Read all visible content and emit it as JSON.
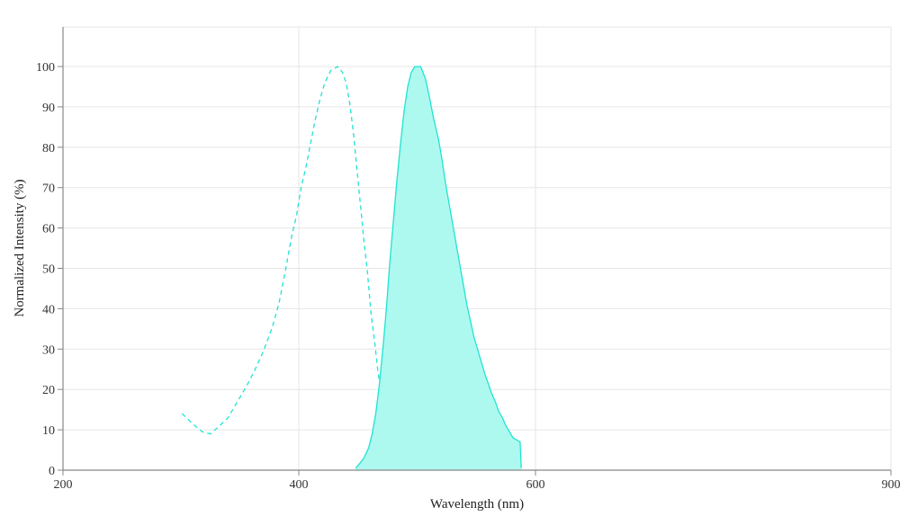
{
  "chart_data": {
    "type": "area",
    "title": "",
    "xlabel": "Wavelength (nm)",
    "ylabel": "Normalized Intensity (%)",
    "xlim": [
      200,
      900
    ],
    "ylim": [
      0,
      100
    ],
    "x_ticks": [
      200,
      400,
      600,
      900
    ],
    "y_ticks": [
      0,
      10,
      20,
      30,
      40,
      50,
      60,
      70,
      80,
      90,
      100
    ],
    "grid": true,
    "legend": "none",
    "series": [
      {
        "style": "dashed-line",
        "color": "#20e3d2",
        "points": [
          [
            301,
            14
          ],
          [
            310,
            11.5
          ],
          [
            318,
            9.5
          ],
          [
            325,
            9
          ],
          [
            333,
            11
          ],
          [
            340,
            13
          ],
          [
            348,
            17
          ],
          [
            356,
            21
          ],
          [
            363,
            25
          ],
          [
            370,
            29.5
          ],
          [
            377,
            35
          ],
          [
            383,
            41
          ],
          [
            389,
            50
          ],
          [
            394,
            58
          ],
          [
            398,
            63
          ],
          [
            402,
            70
          ],
          [
            406,
            75
          ],
          [
            410,
            81
          ],
          [
            414,
            87
          ],
          [
            418,
            92
          ],
          [
            422,
            96
          ],
          [
            427,
            99
          ],
          [
            433,
            100
          ],
          [
            437,
            98.5
          ],
          [
            440,
            96
          ],
          [
            443,
            91
          ],
          [
            446,
            84
          ],
          [
            449,
            75
          ],
          [
            452,
            66
          ],
          [
            455,
            57
          ],
          [
            458,
            49
          ],
          [
            461,
            39
          ],
          [
            464,
            32
          ],
          [
            467,
            24
          ],
          [
            470,
            19
          ],
          [
            473,
            15
          ],
          [
            476,
            11
          ],
          [
            479,
            8.5
          ],
          [
            480.5,
            0.5
          ]
        ]
      },
      {
        "style": "filled-line",
        "color": "#20e3d2",
        "fill": "#aef9ef",
        "points": [
          [
            448,
            0.5
          ],
          [
            451,
            1.5
          ],
          [
            455,
            3
          ],
          [
            459,
            5.5
          ],
          [
            462,
            9
          ],
          [
            465,
            14
          ],
          [
            468,
            21
          ],
          [
            471,
            30
          ],
          [
            474,
            40
          ],
          [
            477,
            52
          ],
          [
            480,
            62
          ],
          [
            483,
            72
          ],
          [
            486,
            81
          ],
          [
            489,
            89
          ],
          [
            492,
            95
          ],
          [
            495,
            98.5
          ],
          [
            498,
            100
          ],
          [
            503,
            100
          ],
          [
            507,
            97
          ],
          [
            510,
            93
          ],
          [
            514,
            87
          ],
          [
            518,
            82
          ],
          [
            521,
            77
          ],
          [
            524,
            71
          ],
          [
            527,
            66
          ],
          [
            530,
            61
          ],
          [
            533,
            56
          ],
          [
            536,
            51
          ],
          [
            539,
            46
          ],
          [
            542,
            41
          ],
          [
            545,
            37
          ],
          [
            548,
            33
          ],
          [
            551,
            30
          ],
          [
            554,
            27
          ],
          [
            557,
            24
          ],
          [
            560,
            21.5
          ],
          [
            563,
            19
          ],
          [
            566,
            17
          ],
          [
            569,
            14.5
          ],
          [
            572,
            13
          ],
          [
            575,
            11
          ],
          [
            578,
            9.5
          ],
          [
            581,
            8
          ],
          [
            584,
            7.5
          ],
          [
            587,
            7
          ],
          [
            588,
            0.5
          ]
        ]
      }
    ]
  }
}
